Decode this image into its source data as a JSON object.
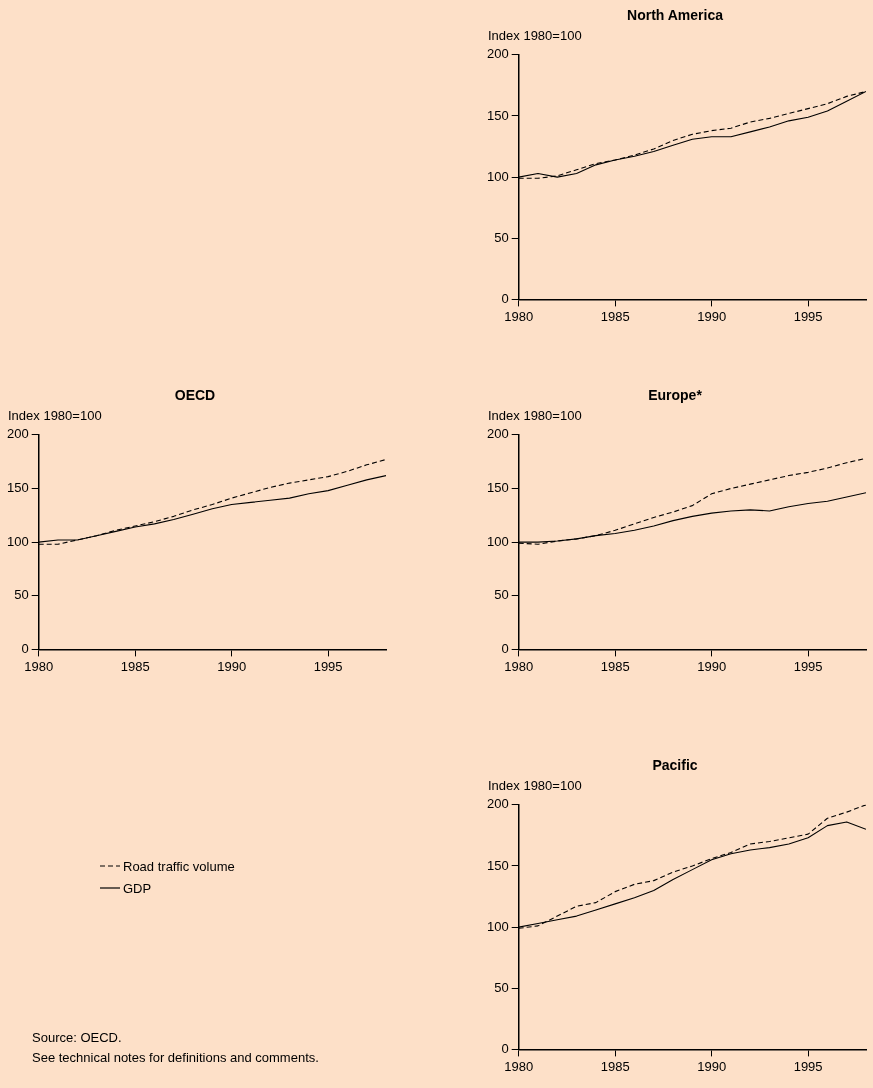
{
  "chart_data": [
    {
      "type": "line",
      "title": "North America",
      "ylabel": "Index 1980=100",
      "x": [
        1980,
        1981,
        1982,
        1983,
        1984,
        1985,
        1986,
        1987,
        1988,
        1989,
        1990,
        1991,
        1992,
        1993,
        1994,
        1995,
        1996,
        1997,
        1998
      ],
      "xlim": [
        1980,
        1998
      ],
      "xticks": [
        1980,
        1985,
        1990,
        1995
      ],
      "ylim": [
        0,
        200
      ],
      "yticks": [
        0,
        50,
        100,
        150,
        200
      ],
      "grid": false,
      "marker": "none",
      "series": [
        {
          "color": "#000000",
          "line_style": "dashed",
          "values": [
            99,
            99,
            101,
            106,
            111,
            114,
            118,
            123,
            130,
            135,
            138,
            140,
            145,
            148,
            152,
            156,
            160,
            166,
            170
          ]
        },
        {
          "color": "#000000",
          "line_style": "solid",
          "values": [
            100,
            103,
            100,
            103,
            110,
            114,
            117,
            121,
            126,
            131,
            133,
            133,
            137,
            141,
            146,
            149,
            154,
            162,
            170
          ]
        }
      ]
    },
    {
      "type": "line",
      "title": "OECD",
      "ylabel": "Index 1980=100",
      "x": [
        1980,
        1981,
        1982,
        1983,
        1984,
        1985,
        1986,
        1987,
        1988,
        1989,
        1990,
        1991,
        1992,
        1993,
        1994,
        1995,
        1996,
        1997,
        1998
      ],
      "xlim": [
        1980,
        1998
      ],
      "xticks": [
        1980,
        1985,
        1990,
        1995
      ],
      "ylim": [
        0,
        200
      ],
      "yticks": [
        0,
        50,
        100,
        150,
        200
      ],
      "grid": false,
      "marker": "none",
      "legend": "bottom",
      "annotations": [
        "Source: OECD.",
        "See technical notes for definitions and comments."
      ],
      "series": [
        {
          "name": "Road traffic volume",
          "color": "#000000",
          "line_style": "dashed",
          "values": [
            98,
            98,
            102,
            106,
            111,
            115,
            119,
            124,
            130,
            135,
            141,
            146,
            151,
            155,
            158,
            161,
            166,
            172,
            177
          ]
        },
        {
          "name": "GDP",
          "color": "#000000",
          "line_style": "solid",
          "values": [
            100,
            102,
            102,
            106,
            110,
            114,
            117,
            121,
            126,
            131,
            135,
            137,
            139,
            141,
            145,
            148,
            153,
            158,
            162
          ]
        }
      ]
    },
    {
      "type": "line",
      "title": "Europe*",
      "ylabel": "Index 1980=100",
      "x": [
        1980,
        1981,
        1982,
        1983,
        1984,
        1985,
        1986,
        1987,
        1988,
        1989,
        1990,
        1991,
        1992,
        1993,
        1994,
        1995,
        1996,
        1997,
        1998
      ],
      "xlim": [
        1980,
        1998
      ],
      "xticks": [
        1980,
        1985,
        1990,
        1995
      ],
      "ylim": [
        0,
        200
      ],
      "yticks": [
        0,
        50,
        100,
        150,
        200
      ],
      "grid": false,
      "marker": "none",
      "series": [
        {
          "color": "#000000",
          "line_style": "dashed",
          "values": [
            99,
            98,
            101,
            103,
            106,
            111,
            117,
            123,
            128,
            134,
            145,
            150,
            154,
            158,
            162,
            165,
            169,
            174,
            178
          ]
        },
        {
          "color": "#000000",
          "line_style": "solid",
          "values": [
            100,
            100,
            101,
            103,
            106,
            108,
            111,
            115,
            120,
            124,
            127,
            129,
            130,
            129,
            133,
            136,
            138,
            142,
            146
          ]
        }
      ]
    },
    {
      "type": "line",
      "title": "Pacific",
      "ylabel": "Index 1980=100",
      "x": [
        1980,
        1981,
        1982,
        1983,
        1984,
        1985,
        1986,
        1987,
        1988,
        1989,
        1990,
        1991,
        1992,
        1993,
        1994,
        1995,
        1996,
        1997,
        1998
      ],
      "xlim": [
        1980,
        1998
      ],
      "xticks": [
        1980,
        1985,
        1990,
        1995
      ],
      "ylim": [
        0,
        200
      ],
      "yticks": [
        0,
        50,
        100,
        150,
        200
      ],
      "grid": false,
      "marker": "none",
      "series": [
        {
          "color": "#000000",
          "line_style": "dashed",
          "values": [
            99,
            101,
            109,
            117,
            120,
            129,
            135,
            138,
            145,
            150,
            156,
            161,
            168,
            170,
            173,
            176,
            189,
            194,
            200
          ]
        },
        {
          "color": "#000000",
          "line_style": "solid",
          "values": [
            100,
            103,
            106,
            109,
            114,
            119,
            124,
            130,
            139,
            147,
            155,
            160,
            163,
            165,
            168,
            173,
            183,
            186,
            180
          ]
        }
      ]
    }
  ]
}
